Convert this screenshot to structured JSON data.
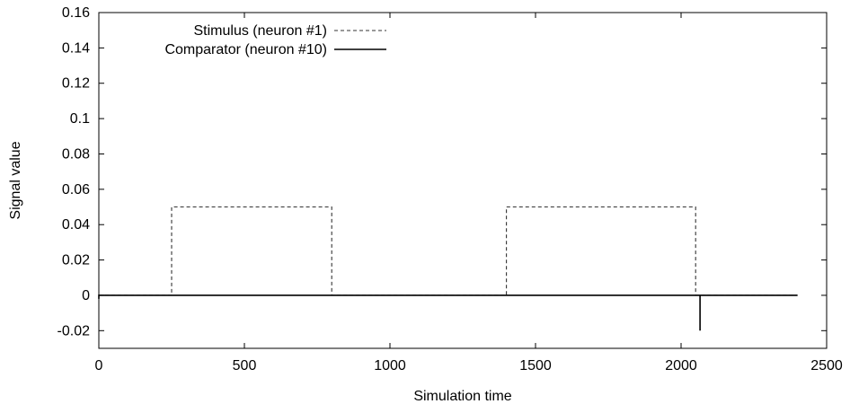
{
  "chart_data": {
    "type": "line",
    "title": "",
    "xlabel": "Simulation time",
    "ylabel": "Signal value",
    "xlim": [
      0,
      2500
    ],
    "ylim": [
      -0.03,
      0.16
    ],
    "xticks": [
      0,
      500,
      1000,
      1500,
      2000,
      2500
    ],
    "xtick_labels": [
      "0",
      "500",
      "1000",
      "1500",
      "2000",
      "2500"
    ],
    "yticks": [
      -0.02,
      0,
      0.02,
      0.04,
      0.06,
      0.08,
      0.1,
      0.12,
      0.14,
      0.16
    ],
    "ytick_labels": [
      "-0.02",
      "0",
      "0.02",
      "0.04",
      "0.06",
      "0.08",
      "0.1",
      "0.12",
      "0.14",
      "0.16"
    ],
    "grid": false,
    "legend_position": "top-left",
    "series": [
      {
        "name": "Stimulus (neuron #1)",
        "style": "dashed",
        "color": "#333333",
        "x": [
          0,
          250,
          250,
          800,
          800,
          1400,
          1400,
          2050,
          2050,
          2400
        ],
        "y": [
          0,
          0,
          0.05,
          0.05,
          0,
          0,
          0.05,
          0.05,
          0,
          0
        ]
      },
      {
        "name": "Comparator (neuron #10)",
        "style": "solid",
        "color": "#000000",
        "x": [
          0,
          0,
          0,
          2065,
          2065,
          2065,
          2400
        ],
        "y": [
          0,
          -0.002,
          0,
          0,
          -0.02,
          0,
          0
        ]
      }
    ]
  }
}
